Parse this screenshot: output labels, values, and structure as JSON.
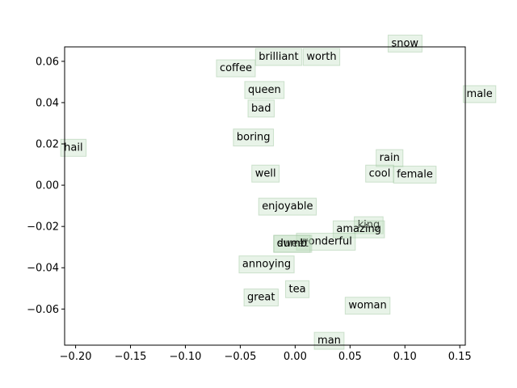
{
  "chart_data": {
    "type": "scatter",
    "title": "",
    "xlabel": "",
    "ylabel": "",
    "xlim": [
      -0.21,
      0.155
    ],
    "ylim": [
      -0.0775,
      0.067
    ],
    "grid": false,
    "x_ticks": [
      "−0.20",
      "−0.15",
      "−0.10",
      "−0.05",
      "0.00",
      "0.05",
      "0.10",
      "0.15"
    ],
    "x_tick_values": [
      -0.2,
      -0.15,
      -0.1,
      -0.05,
      0.0,
      0.05,
      0.1,
      0.15
    ],
    "y_ticks": [
      "−0.06",
      "−0.04",
      "−0.02",
      "0.00",
      "0.02",
      "0.04",
      "0.06"
    ],
    "y_tick_values": [
      -0.06,
      -0.04,
      -0.02,
      0.0,
      0.02,
      0.04,
      0.06
    ],
    "points": [
      {
        "label": "snow",
        "x": 0.1,
        "y": 0.069
      },
      {
        "label": "brilliant",
        "x": -0.015,
        "y": 0.0625
      },
      {
        "label": "worth",
        "x": 0.024,
        "y": 0.0625
      },
      {
        "label": "coffee",
        "x": -0.054,
        "y": 0.057
      },
      {
        "label": "male",
        "x": 0.168,
        "y": 0.0445
      },
      {
        "label": "queen",
        "x": -0.028,
        "y": 0.0465
      },
      {
        "label": "bad",
        "x": -0.031,
        "y": 0.0375
      },
      {
        "label": "boring",
        "x": -0.038,
        "y": 0.0235
      },
      {
        "label": "hail",
        "x": -0.202,
        "y": 0.0185
      },
      {
        "label": "rain",
        "x": 0.086,
        "y": 0.0135
      },
      {
        "label": "well",
        "x": -0.027,
        "y": 0.006
      },
      {
        "label": "cool",
        "x": 0.077,
        "y": 0.006
      },
      {
        "label": "female",
        "x": 0.109,
        "y": 0.0055
      },
      {
        "label": "enjoyable",
        "x": -0.007,
        "y": -0.01
      },
      {
        "label": "king",
        "x": 0.067,
        "y": -0.019
      },
      {
        "label": "amazing",
        "x": 0.058,
        "y": -0.021
      },
      {
        "label": "wonderful",
        "x": 0.028,
        "y": -0.027
      },
      {
        "label": "sweet",
        "x": -0.002,
        "y": -0.028
      },
      {
        "label": "dumb",
        "x": -0.003,
        "y": -0.028
      },
      {
        "label": "annoying",
        "x": -0.026,
        "y": -0.038
      },
      {
        "label": "tea",
        "x": 0.002,
        "y": -0.05
      },
      {
        "label": "great",
        "x": -0.031,
        "y": -0.054
      },
      {
        "label": "woman",
        "x": 0.066,
        "y": -0.058
      },
      {
        "label": "man",
        "x": 0.031,
        "y": -0.075
      }
    ]
  }
}
